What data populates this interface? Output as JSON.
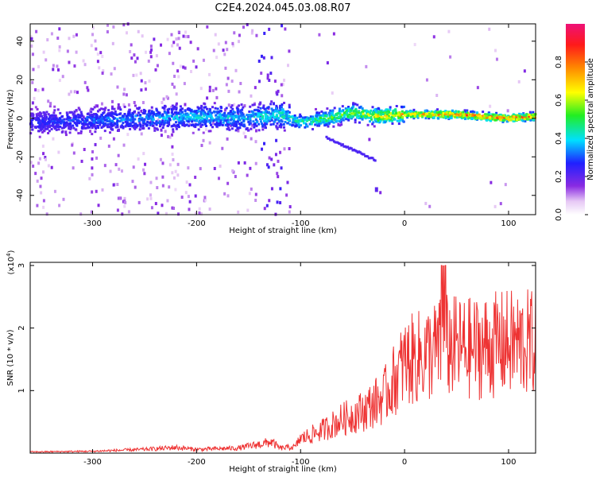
{
  "title": "C2E4.2024.045.03.08.R07",
  "chart_data": [
    {
      "type": "heatmap",
      "xlabel": "Height of straight line (km)",
      "ylabel": "Frequency (Hz)",
      "xlim": [
        -360,
        126
      ],
      "ylim": [
        -50,
        49
      ],
      "xticks": [
        -300,
        -200,
        -100,
        0,
        100
      ],
      "yticks": [
        -40,
        -20,
        0,
        20,
        40
      ],
      "colorbar": {
        "label": "Normalized spectral amplitude",
        "range": [
          0,
          1
        ],
        "ticks": [
          0.0,
          0.2,
          0.4,
          0.6,
          0.8
        ]
      },
      "ridge": [
        {
          "x": -350,
          "freq": -2,
          "amp": 0.3
        },
        {
          "x": -300,
          "freq": -1,
          "amp": 0.35
        },
        {
          "x": -250,
          "freq": 0,
          "amp": 0.4
        },
        {
          "x": -200,
          "freq": 1,
          "amp": 0.45
        },
        {
          "x": -150,
          "freq": 0,
          "amp": 0.45
        },
        {
          "x": -120,
          "freq": 2,
          "amp": 0.5
        },
        {
          "x": -100,
          "freq": -2,
          "amp": 0.5
        },
        {
          "x": -75,
          "freq": 0,
          "amp": 0.6
        },
        {
          "x": -50,
          "freq": 3,
          "amp": 0.65
        },
        {
          "x": -25,
          "freq": 1,
          "amp": 0.75
        },
        {
          "x": 0,
          "freq": 2,
          "amp": 0.8
        },
        {
          "x": 50,
          "freq": 2,
          "amp": 0.95
        },
        {
          "x": 100,
          "freq": 0,
          "amp": 0.95
        },
        {
          "x": 126,
          "freq": 1,
          "amp": 0.9
        }
      ]
    },
    {
      "type": "line",
      "xlabel": "Height of straight line (km)",
      "ylabel": "SNR (10 * v/v)",
      "multiplier_label": "(x10",
      "multiplier_exp": "4",
      "multiplier_close": ")",
      "xlim": [
        -360,
        126
      ],
      "ylim": [
        0,
        3.05
      ],
      "xticks": [
        -300,
        -200,
        -100,
        0,
        100
      ],
      "yticks": [
        1,
        2,
        3
      ],
      "color": "#ee3333",
      "series": [
        {
          "x": [
            -360,
            -300,
            -250,
            -220,
            -200,
            -160,
            -140,
            -128,
            -120,
            -105,
            -100,
            -80,
            -60,
            -40,
            -20,
            -10,
            0,
            20,
            40,
            60,
            80,
            100,
            126
          ],
          "y": [
            0.02,
            0.03,
            0.06,
            0.09,
            0.06,
            0.08,
            0.14,
            0.18,
            0.08,
            0.1,
            0.25,
            0.4,
            0.6,
            0.75,
            1.0,
            1.3,
            1.6,
            1.75,
            1.9,
            1.85,
            1.9,
            1.95,
            1.95
          ]
        }
      ]
    }
  ]
}
